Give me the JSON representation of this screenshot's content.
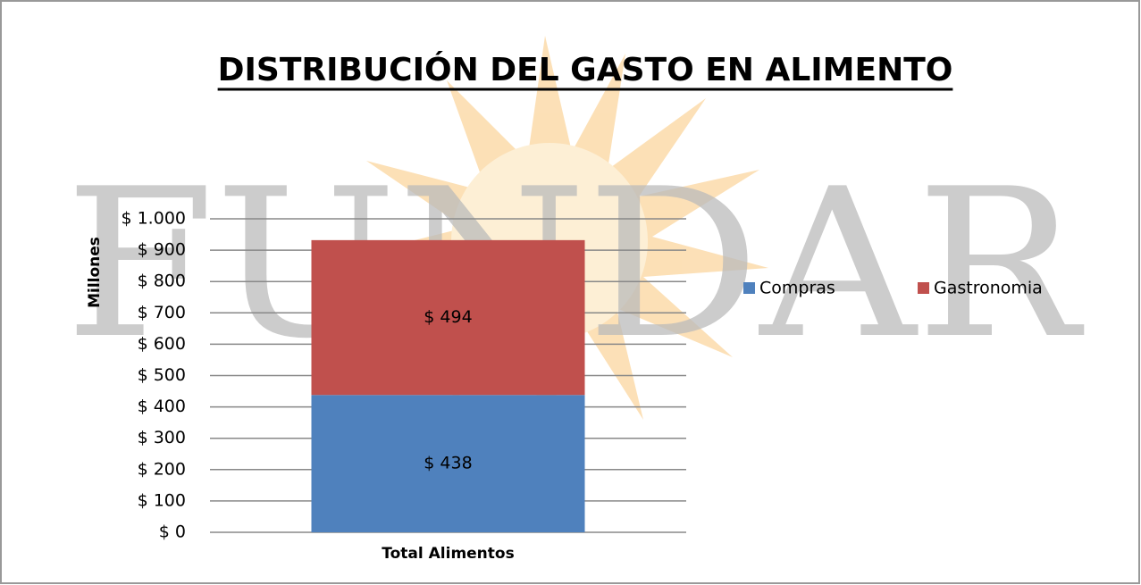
{
  "chart_data": {
    "type": "stacked_bar",
    "title": "DISTRIBUCIÓN DEL GASTO EN ALIMENTO",
    "watermark": "FUNDAR",
    "y_label": "Millones",
    "categories": [
      "Total Alimentos"
    ],
    "series": [
      {
        "name": "Compras",
        "color": "#4f81bd",
        "values": [
          438
        ],
        "value_labels": [
          "$ 438"
        ]
      },
      {
        "name": "Gastronomia",
        "color": "#c0504d",
        "values": [
          494
        ],
        "value_labels": [
          "$ 494"
        ]
      }
    ],
    "ylim": [
      0,
      1000
    ],
    "yticks": [
      {
        "value": 0,
        "label": "$ 0"
      },
      {
        "value": 100,
        "label": "$ 100"
      },
      {
        "value": 200,
        "label": "$ 200"
      },
      {
        "value": 300,
        "label": "$ 300"
      },
      {
        "value": 400,
        "label": "$ 400"
      },
      {
        "value": 500,
        "label": "$ 500"
      },
      {
        "value": 600,
        "label": "$ 600"
      },
      {
        "value": 700,
        "label": "$ 700"
      },
      {
        "value": 800,
        "label": "$ 800"
      },
      {
        "value": 900,
        "label": "$ 900"
      },
      {
        "value": 1000,
        "label": "$ 1.000"
      }
    ],
    "grid": true,
    "legend": "right"
  }
}
